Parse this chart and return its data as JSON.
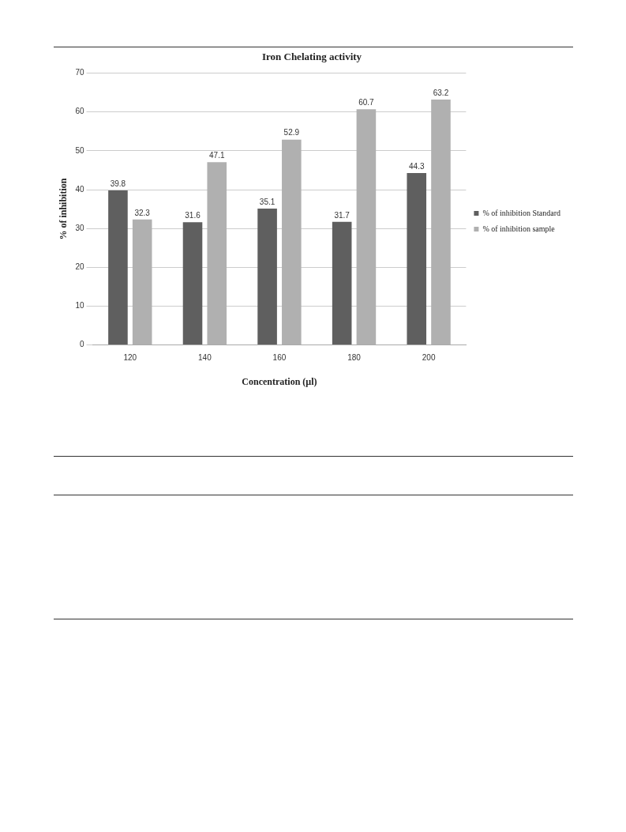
{
  "chart_data": {
    "type": "bar",
    "title": "Iron Chelating activity",
    "xlabel": "Concentration (µl)",
    "ylabel": "% of inhibition",
    "categories": [
      "120",
      "140",
      "160",
      "180",
      "200"
    ],
    "series": [
      {
        "name": "% of inhibition Standard",
        "color": "#5f5f5f",
        "values": [
          39.8,
          31.6,
          35.1,
          31.7,
          44.3
        ]
      },
      {
        "name": "% of inhibition sample",
        "color": "#b0b0b0",
        "values": [
          32.3,
          47.1,
          52.9,
          60.7,
          63.2
        ]
      }
    ],
    "ylim": [
      0,
      70
    ],
    "yticks": [
      0,
      10,
      20,
      30,
      40,
      50,
      60,
      70
    ],
    "grid": "y",
    "legend": "right",
    "data_labels": true
  }
}
